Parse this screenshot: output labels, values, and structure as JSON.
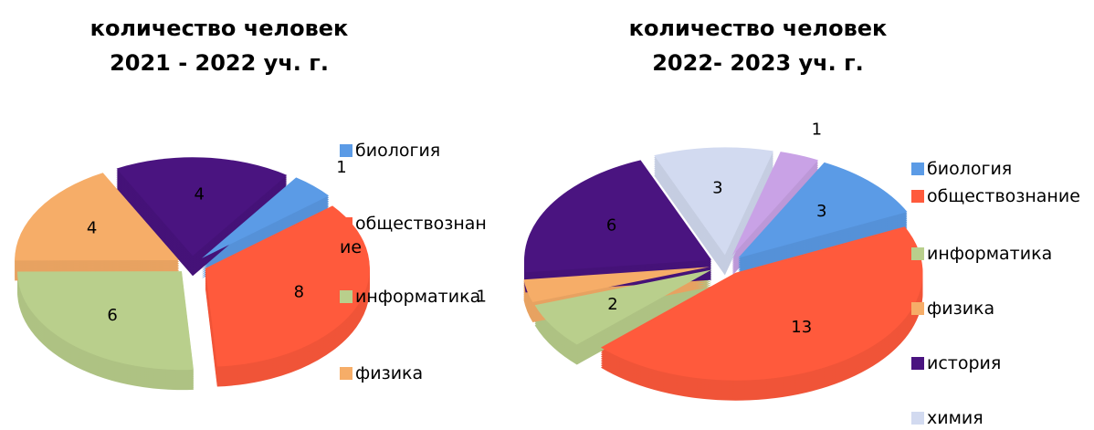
{
  "chart_data": [
    {
      "type": "pie",
      "title": [
        "количество человек",
        "2021 - 2022 уч. г."
      ],
      "categories": [
        "биология",
        "обществознание",
        "информатика",
        "физика",
        null
      ],
      "values": [
        1,
        8,
        6,
        4,
        4
      ],
      "colors": [
        "#5b9be6",
        "#ff5a3c",
        "#b9cf8c",
        "#f6ad68",
        "#4a1480"
      ]
    },
    {
      "type": "pie",
      "title": [
        "количество человек",
        "2022- 2023 уч. г."
      ],
      "categories": [
        null,
        "биология",
        "обществознание",
        "информатика",
        "физика",
        "история",
        "химия"
      ],
      "values": [
        1,
        3,
        13,
        2,
        1,
        6,
        3
      ],
      "colors": [
        "#c9a2e6",
        "#5b9be6",
        "#ff5a3c",
        "#b9cf8c",
        "#f6ad68",
        "#4a1480",
        "#d2daf0"
      ]
    }
  ]
}
